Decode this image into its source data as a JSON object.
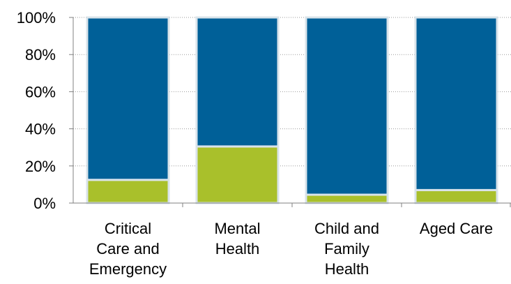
{
  "chart_data": {
    "type": "bar",
    "stacked": true,
    "percent_stacked": true,
    "categories": [
      [
        "Critical",
        "Care and",
        "Emergency"
      ],
      [
        "Mental",
        "Health"
      ],
      [
        "Child and",
        "Family",
        "Health"
      ],
      [
        "Aged Care"
      ]
    ],
    "series": [
      {
        "color": "#a9c02b",
        "values": [
          12.5,
          30.5,
          4.5,
          7.0
        ]
      },
      {
        "color": "#006098",
        "values": [
          87.5,
          69.5,
          95.5,
          93.0
        ]
      }
    ],
    "ylim": [
      0,
      100
    ],
    "yticks": [
      "0%",
      "20%",
      "40%",
      "60%",
      "80%",
      "100%"
    ],
    "gridlines": true,
    "legend": "none"
  }
}
